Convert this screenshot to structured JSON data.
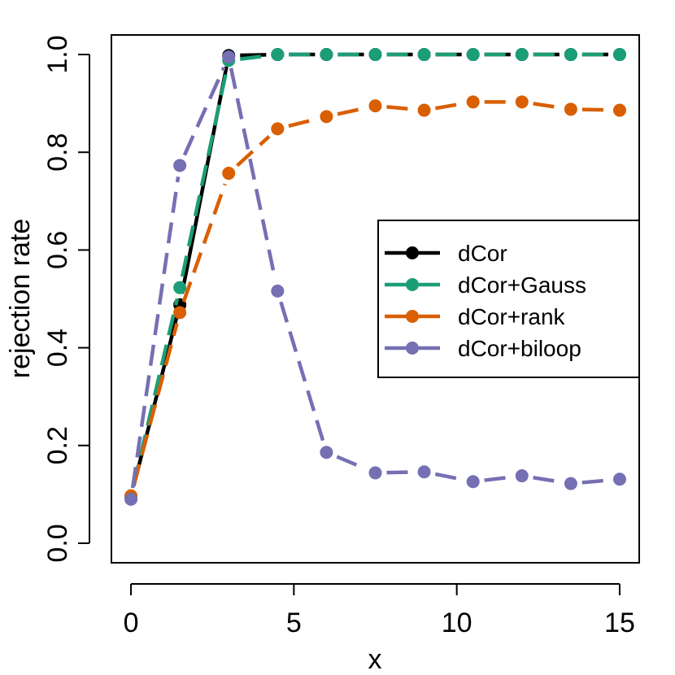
{
  "chart_data": {
    "type": "line",
    "title": "",
    "xlabel": "x",
    "ylabel": "rejection rate",
    "xlim": [
      -0.6,
      15.6
    ],
    "ylim": [
      -0.04,
      1.04
    ],
    "x_ticks": [
      0,
      5,
      10,
      15
    ],
    "y_ticks": [
      0.0,
      0.2,
      0.4,
      0.6,
      0.8,
      1.0
    ],
    "x_tick_labels": [
      "0",
      "5",
      "10",
      "15"
    ],
    "y_tick_labels": [
      "0.0",
      "0.2",
      "0.4",
      "0.6",
      "0.8",
      "1.0"
    ],
    "grid": false,
    "legend_position": "right",
    "series": [
      {
        "name": "dCor",
        "color": "#000000",
        "x": [
          0,
          1.5,
          3,
          4.5,
          6,
          7.5,
          9,
          10.5,
          12,
          13.5,
          15
        ],
        "y": [
          0.095,
          0.488,
          0.998,
          1.0,
          1.0,
          1.0,
          1.0,
          1.0,
          1.0,
          1.0,
          1.0
        ]
      },
      {
        "name": "dCor+Gauss",
        "color": "#1b9e77",
        "x": [
          0,
          1.5,
          3,
          4.5,
          6,
          7.5,
          9,
          10.5,
          12,
          13.5,
          15
        ],
        "y": [
          0.095,
          0.523,
          0.988,
          1.0,
          1.0,
          1.0,
          1.0,
          1.0,
          1.0,
          1.0,
          1.0
        ]
      },
      {
        "name": "dCor+rank",
        "color": "#d95f02",
        "x": [
          0,
          1.5,
          3,
          4.5,
          6,
          7.5,
          9,
          10.5,
          12,
          13.5,
          15
        ],
        "y": [
          0.097,
          0.472,
          0.757,
          0.848,
          0.873,
          0.895,
          0.886,
          0.903,
          0.903,
          0.888,
          0.886
        ]
      },
      {
        "name": "dCor+biloop",
        "color": "#7570b3",
        "x": [
          0,
          1.5,
          3,
          4.5,
          6,
          7.5,
          9,
          10.5,
          12,
          13.5,
          15
        ],
        "y": [
          0.09,
          0.773,
          0.995,
          0.516,
          0.186,
          0.144,
          0.146,
          0.126,
          0.138,
          0.122,
          0.131
        ]
      }
    ]
  }
}
